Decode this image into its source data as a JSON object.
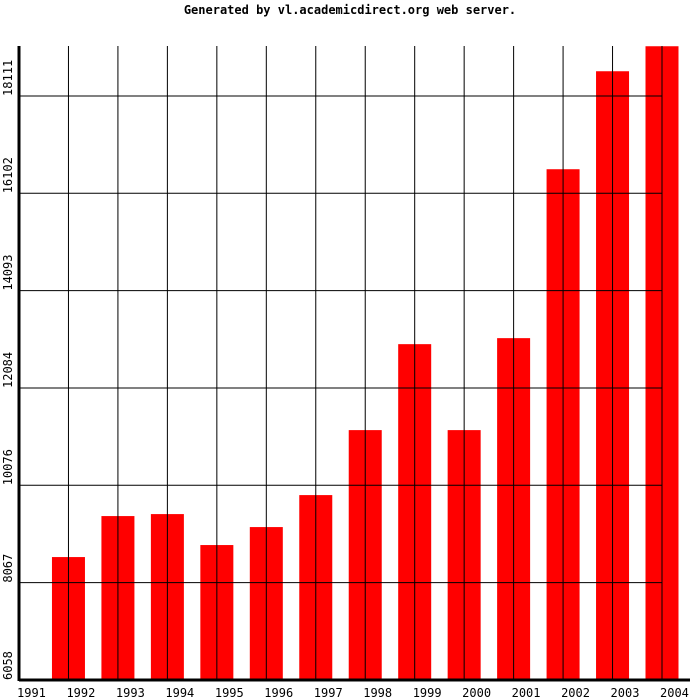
{
  "chart_data": {
    "type": "bar",
    "title": "Generated by vl.academicdirect.org web server.",
    "categories": [
      "1991",
      "1992",
      "1993",
      "1994",
      "1995",
      "1996",
      "1997",
      "1998",
      "1999",
      "2000",
      "2001",
      "2002",
      "2003",
      "2004"
    ],
    "values": [
      null,
      8595,
      9441,
      9482,
      8843,
      9214,
      9874,
      11215,
      12989,
      11215,
      13113,
      16599,
      18621,
      19137
    ],
    "color": "#ff0000",
    "ylim": [
      6058,
      19142
    ],
    "yticks": [
      6058,
      8067,
      10076,
      12084,
      14093,
      16102,
      18111
    ],
    "grid": true
  }
}
